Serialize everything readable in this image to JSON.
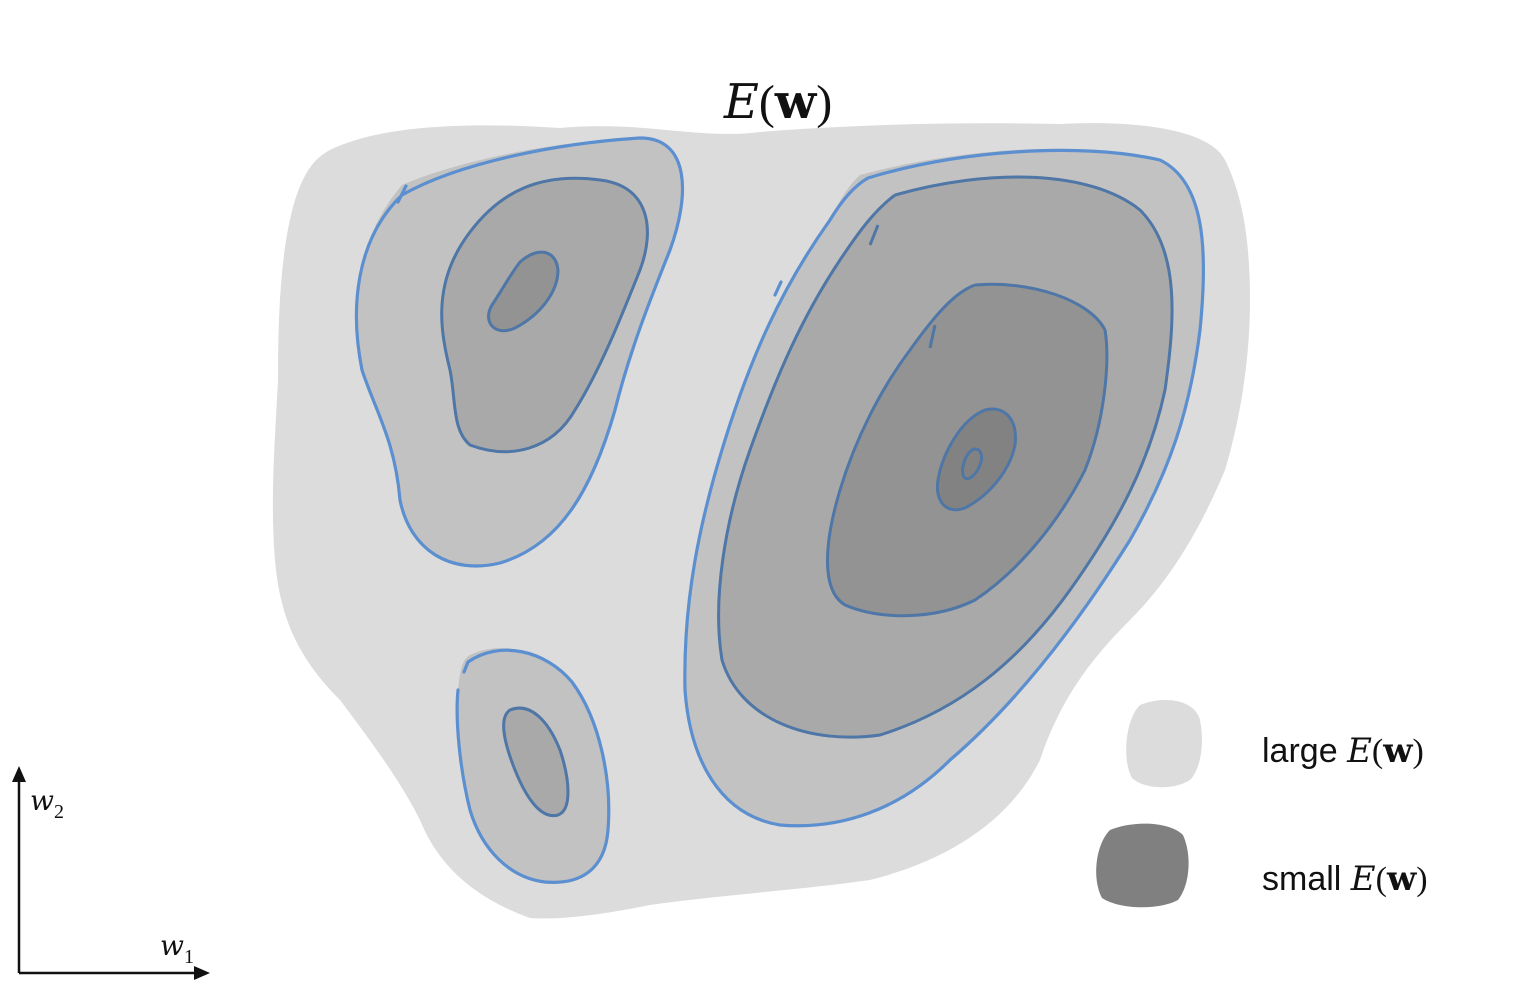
{
  "title": {
    "func": "E",
    "arg": "w"
  },
  "legend": {
    "large": {
      "word": "large",
      "func": "E",
      "arg": "w"
    },
    "small": {
      "word": "small",
      "func": "E",
      "arg": "w"
    }
  },
  "axes": {
    "x": {
      "var": "w",
      "sub": "1"
    },
    "y": {
      "var": "w",
      "sub": "2"
    }
  },
  "colors": {
    "background_region": "#dcdcdc",
    "level1": "#c2c2c2",
    "level2": "#a9a9a9",
    "level3": "#939393",
    "level4": "#828282",
    "contour_line": "#5b8fd0",
    "legend_large": "#dcdcdc",
    "legend_small": "#808080"
  }
}
